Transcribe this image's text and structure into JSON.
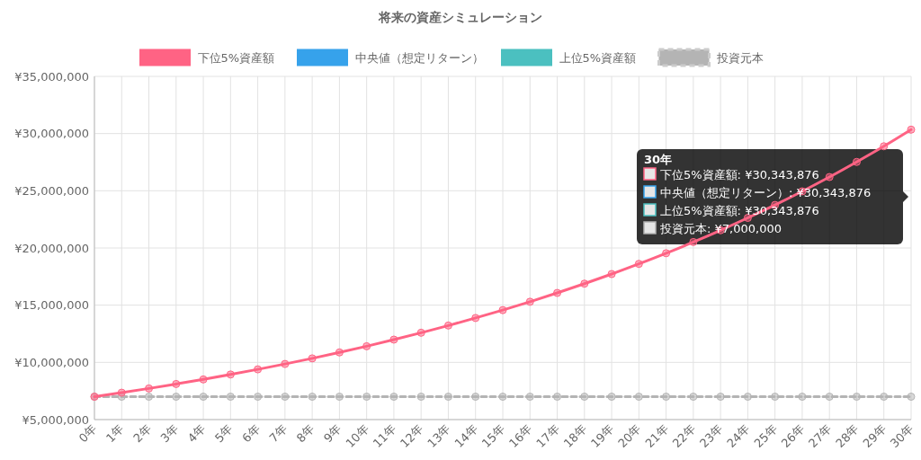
{
  "chart_data": {
    "type": "line",
    "title": "将来の資産シミュレーション",
    "categories": [
      "0年",
      "1年",
      "2年",
      "3年",
      "4年",
      "5年",
      "6年",
      "7年",
      "8年",
      "9年",
      "10年",
      "11年",
      "12年",
      "13年",
      "14年",
      "15年",
      "16年",
      "17年",
      "18年",
      "19年",
      "20年",
      "21年",
      "22年",
      "23年",
      "24年",
      "25年",
      "26年",
      "27年",
      "28年",
      "29年",
      "30年"
    ],
    "series": [
      {
        "name": "下位5%資産額",
        "color": "#ff6384",
        "values": [
          7000000,
          7350000,
          7720000,
          8110000,
          8510000,
          8940000,
          9390000,
          9860000,
          10350000,
          10870000,
          11410000,
          11990000,
          12590000,
          13220000,
          13880000,
          14570000,
          15300000,
          16070000,
          16880000,
          17720000,
          18610000,
          19540000,
          20520000,
          21550000,
          22630000,
          23760000,
          24950000,
          26200000,
          27520000,
          28890000,
          30343876
        ]
      },
      {
        "name": "中央値（想定リターン）",
        "color": "#36a2eb",
        "values": [
          null,
          null,
          null,
          null,
          null,
          null,
          null,
          null,
          null,
          null,
          null,
          null,
          null,
          null,
          null,
          null,
          null,
          null,
          null,
          null,
          null,
          null,
          null,
          null,
          null,
          null,
          null,
          null,
          null,
          null,
          null
        ]
      },
      {
        "name": "上位5%資産額",
        "color": "#4bc0c0",
        "values": [
          null,
          null,
          null,
          null,
          null,
          null,
          null,
          null,
          null,
          null,
          null,
          null,
          null,
          null,
          null,
          null,
          null,
          null,
          null,
          null,
          null,
          null,
          null,
          null,
          null,
          null,
          null,
          null,
          null,
          null,
          null
        ]
      },
      {
        "name": "投資元本",
        "color": "#b4b4b4",
        "line_style": "dashed",
        "values": [
          7000000,
          7000000,
          7000000,
          7000000,
          7000000,
          7000000,
          7000000,
          7000000,
          7000000,
          7000000,
          7000000,
          7000000,
          7000000,
          7000000,
          7000000,
          7000000,
          7000000,
          7000000,
          7000000,
          7000000,
          7000000,
          7000000,
          7000000,
          7000000,
          7000000,
          7000000,
          7000000,
          7000000,
          7000000,
          7000000,
          7000000
        ]
      }
    ],
    "ylim": [
      5000000,
      35000000
    ],
    "yticks": [
      {
        "value": 5000000,
        "label": "¥5,000,000"
      },
      {
        "value": 10000000,
        "label": "¥10,000,000"
      },
      {
        "value": 15000000,
        "label": "¥15,000,000"
      },
      {
        "value": 20000000,
        "label": "¥20,000,000"
      },
      {
        "value": 25000000,
        "label": "¥25,000,000"
      },
      {
        "value": 30000000,
        "label": "¥30,000,000"
      },
      {
        "value": 35000000,
        "label": "¥35,000,000"
      }
    ],
    "grid": true,
    "legend": "top",
    "marker": "circle",
    "annotations": [
      "30年",
      "下位5%資産額: ¥30,343,876",
      "中央値（想定リターン）: ¥30,343,876",
      "上位5%資産額: ¥30,343,876",
      "投資元本: ¥7,000,000"
    ]
  }
}
